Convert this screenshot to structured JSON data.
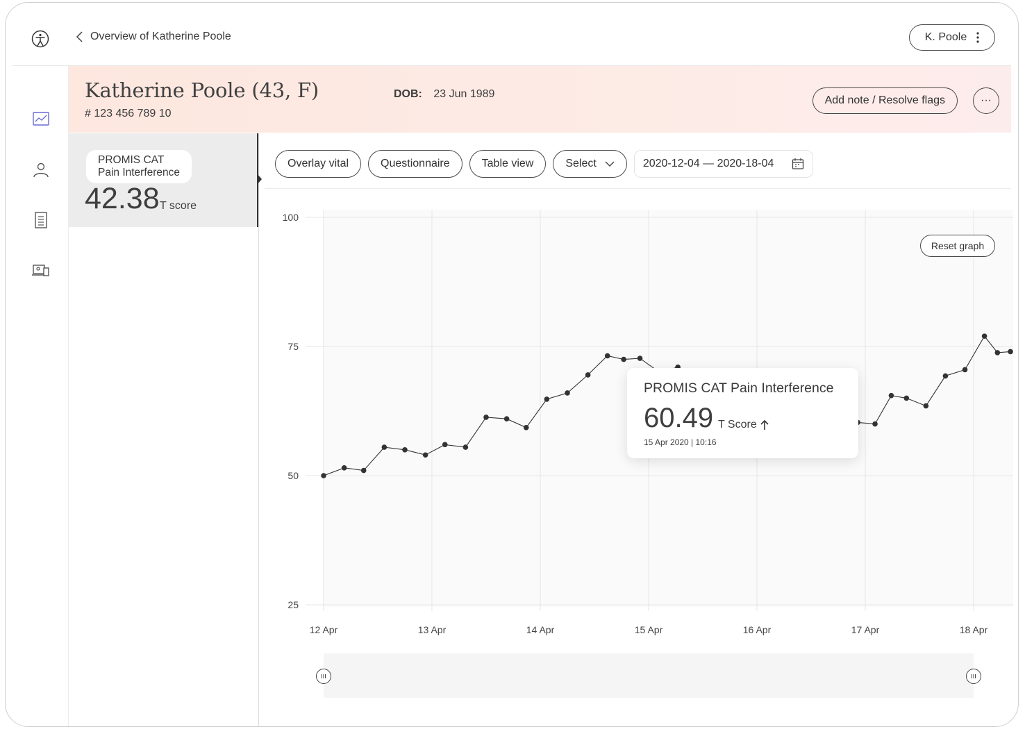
{
  "nav": {
    "back_label": "Overview of Katherine Poole",
    "user_label": "K. Poole"
  },
  "sidebar": {
    "icons": [
      "trend-chart-icon",
      "person-icon",
      "document-list-icon",
      "devices-icon"
    ]
  },
  "patient": {
    "name": "Katherine Poole (43, F)",
    "id": "# 123 456 789 10",
    "dob_label": "DOB:",
    "dob_value": "23 Jun 1989",
    "add_note_label": "Add note / Resolve flags",
    "more_label": "···"
  },
  "card": {
    "label_line1": "PROMIS CAT",
    "label_line2": "Pain Interference",
    "value": "42.38",
    "unit": "T score"
  },
  "toolbar": {
    "overlay_label": "Overlay vital",
    "questionnaire_label": "Questionnaire",
    "table_label": "Table view",
    "select_label": "Select",
    "date_range": "2020-12-04 — 2020-18-04"
  },
  "reset_label": "Reset graph",
  "tooltip": {
    "title": "PROMIS CAT Pain Interference",
    "value": "60.49",
    "unit": "T Score",
    "timestamp": "15 Apr 2020 | 10:16"
  },
  "chart_data": {
    "type": "line",
    "x": [
      12.0,
      12.19,
      12.37,
      12.56,
      12.75,
      12.94,
      13.12,
      13.31,
      13.5,
      13.69,
      13.87,
      14.06,
      14.25,
      14.44,
      14.62,
      14.77,
      14.92,
      15.1,
      15.27,
      15.4,
      15.6,
      15.8,
      16.0,
      16.2,
      16.4,
      16.6,
      16.8,
      16.93,
      17.09,
      17.24,
      17.38,
      17.56,
      17.74,
      17.92,
      18.1,
      18.22,
      18.34
    ],
    "y": [
      50.0,
      51.5,
      51.0,
      55.5,
      55.0,
      54.0,
      56.0,
      55.5,
      61.3,
      61.0,
      59.3,
      64.8,
      66.0,
      69.5,
      73.2,
      72.5,
      72.7,
      70.0,
      71.0,
      66.0,
      63.0,
      61.0,
      62.0,
      63.5,
      62.5,
      61.5,
      60.5,
      60.3,
      60.0,
      65.5,
      65.0,
      63.5,
      69.3,
      70.5,
      77.0,
      73.8,
      74.0
    ],
    "x_ticks": [
      "12 Apr",
      "13 Apr",
      "14 Apr",
      "15 Apr",
      "16 Apr",
      "17 Apr",
      "18 Apr"
    ],
    "y_ticks": [
      25,
      50,
      75,
      100
    ],
    "ylim": [
      25,
      100
    ],
    "xlim": [
      12,
      18.34
    ],
    "grid": true,
    "line_color": "#333333",
    "point_color": "#333333"
  }
}
